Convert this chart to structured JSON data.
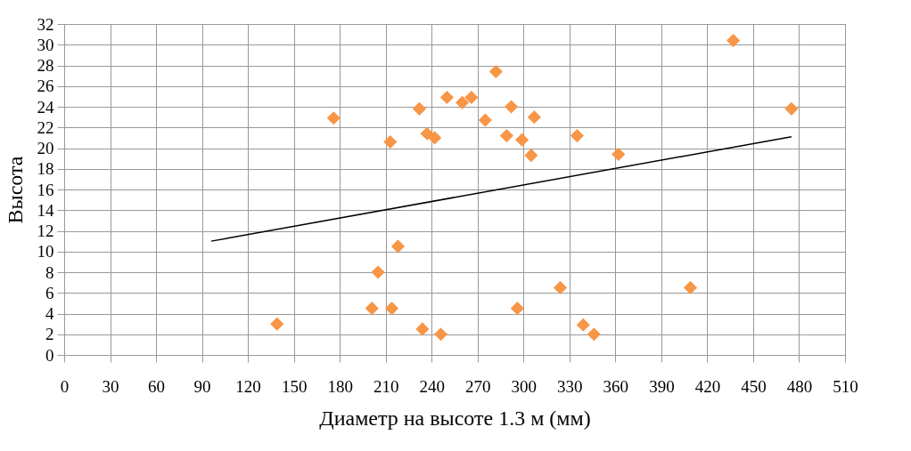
{
  "chart_data": {
    "type": "scatter",
    "xlabel": "Диаметр на высоте 1.3 м (мм)",
    "ylabel": "Высота",
    "xlim": [
      0,
      510
    ],
    "xticks": [
      0,
      30,
      60,
      90,
      120,
      150,
      180,
      210,
      240,
      270,
      300,
      330,
      360,
      390,
      420,
      450,
      480,
      510
    ],
    "ylim": [
      0,
      32
    ],
    "yticks": [
      0,
      2,
      4,
      6,
      8,
      10,
      12,
      14,
      16,
      18,
      20,
      22,
      24,
      26,
      28,
      30,
      32
    ],
    "grid": true,
    "series": [
      {
        "color": "#f79646",
        "marker": "diamond",
        "x": [
          139,
          176,
          201,
          205,
          213,
          214,
          218,
          232,
          234,
          237,
          242,
          246,
          250,
          260,
          266,
          275,
          282,
          289,
          292,
          296,
          299,
          305,
          307,
          324,
          335,
          339,
          346,
          362,
          409,
          437,
          475
        ],
        "values": [
          3.0,
          22.9,
          4.5,
          8.0,
          20.6,
          4.5,
          10.5,
          23.8,
          2.5,
          21.4,
          21.0,
          2.0,
          24.9,
          24.4,
          24.9,
          22.7,
          27.4,
          21.2,
          24.0,
          4.5,
          20.8,
          19.3,
          23.0,
          6.5,
          21.2,
          2.9,
          2.0,
          19.4,
          6.5,
          30.4,
          23.8
        ]
      },
      {
        "type": "line",
        "color": "#000000",
        "line_style": "solid",
        "marker": "none",
        "x": [
          96,
          475
        ],
        "values": [
          11.0,
          21.1
        ]
      }
    ]
  }
}
